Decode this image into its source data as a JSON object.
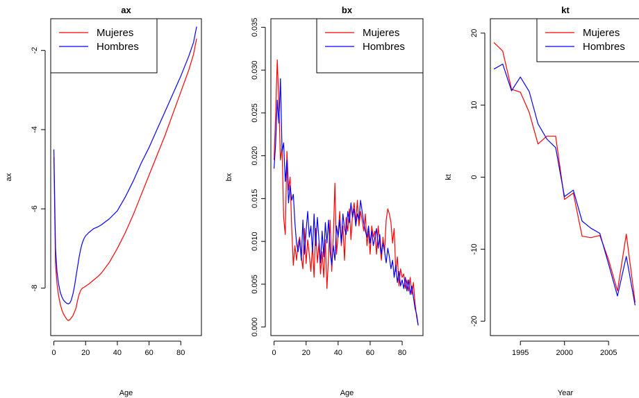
{
  "chart_data": [
    {
      "type": "line",
      "title": "ax",
      "xlabel": "Age",
      "ylabel": "ax",
      "xlim": [
        -2,
        93
      ],
      "ylim": [
        -9.2,
        -1.2
      ],
      "x_ticks": [
        0,
        20,
        40,
        60,
        80
      ],
      "y_ticks": [
        -8,
        -6,
        -4,
        -2
      ],
      "grid": false,
      "legend_position": "top-left",
      "series": [
        {
          "name": "Mujeres",
          "color": "#ff0000",
          "x": [
            0,
            1,
            2,
            3,
            4,
            5,
            6,
            7,
            8,
            9,
            10,
            11,
            12,
            13,
            14,
            15,
            16,
            17,
            18,
            19,
            20,
            22,
            25,
            28,
            30,
            35,
            40,
            45,
            50,
            55,
            60,
            65,
            70,
            75,
            80,
            85,
            88,
            90
          ],
          "y": [
            -4.7,
            -7.4,
            -7.9,
            -8.2,
            -8.4,
            -8.55,
            -8.65,
            -8.72,
            -8.78,
            -8.82,
            -8.8,
            -8.75,
            -8.7,
            -8.6,
            -8.5,
            -8.3,
            -8.15,
            -8.05,
            -8.0,
            -7.98,
            -7.95,
            -7.9,
            -7.8,
            -7.7,
            -7.62,
            -7.35,
            -7.0,
            -6.6,
            -6.15,
            -5.65,
            -5.15,
            -4.65,
            -4.15,
            -3.6,
            -3.05,
            -2.5,
            -2.1,
            -1.7
          ]
        },
        {
          "name": "Hombres",
          "color": "#0000ff",
          "x": [
            0,
            1,
            2,
            3,
            4,
            5,
            6,
            7,
            8,
            9,
            10,
            11,
            12,
            13,
            14,
            15,
            16,
            17,
            18,
            19,
            20,
            22,
            25,
            28,
            30,
            35,
            40,
            45,
            50,
            55,
            60,
            65,
            70,
            75,
            80,
            85,
            88,
            90
          ],
          "y": [
            -4.5,
            -7.0,
            -7.6,
            -7.9,
            -8.1,
            -8.22,
            -8.3,
            -8.35,
            -8.38,
            -8.4,
            -8.38,
            -8.3,
            -8.15,
            -7.95,
            -7.7,
            -7.45,
            -7.2,
            -7.0,
            -6.85,
            -6.75,
            -6.68,
            -6.6,
            -6.5,
            -6.45,
            -6.4,
            -6.25,
            -6.05,
            -5.7,
            -5.3,
            -4.85,
            -4.45,
            -4.0,
            -3.55,
            -3.1,
            -2.65,
            -2.15,
            -1.8,
            -1.4
          ]
        }
      ]
    },
    {
      "type": "line",
      "title": "bx",
      "xlabel": "Age",
      "ylabel": "bx",
      "xlim": [
        -2,
        93
      ],
      "ylim": [
        -0.001,
        0.036
      ],
      "x_ticks": [
        0,
        20,
        40,
        60,
        80
      ],
      "y_ticks": [
        0.0,
        0.005,
        0.01,
        0.015,
        0.02,
        0.025,
        0.03,
        0.035
      ],
      "y_tick_labels": [
        "0.000",
        "0.005",
        "0.010",
        "0.015",
        "0.020",
        "0.025",
        "0.030",
        "0.035"
      ],
      "grid": false,
      "legend_position": "top-right",
      "series": [
        {
          "name": "Mujeres",
          "color": "#ff0000",
          "x": [
            0,
            1,
            2,
            3,
            4,
            5,
            6,
            7,
            8,
            9,
            10,
            11,
            12,
            13,
            14,
            15,
            16,
            17,
            18,
            19,
            20,
            21,
            22,
            23,
            24,
            25,
            26,
            27,
            28,
            29,
            30,
            31,
            32,
            33,
            34,
            35,
            36,
            37,
            38,
            39,
            40,
            41,
            42,
            43,
            44,
            45,
            46,
            47,
            48,
            49,
            50,
            51,
            52,
            53,
            54,
            55,
            56,
            57,
            58,
            59,
            60,
            61,
            62,
            63,
            64,
            65,
            66,
            67,
            68,
            69,
            70,
            71,
            72,
            73,
            74,
            75,
            76,
            77,
            78,
            79,
            80,
            81,
            82,
            83,
            84,
            85,
            86,
            87,
            88,
            89,
            90
          ],
          "y": [
            0.0195,
            0.025,
            0.0312,
            0.026,
            0.0195,
            0.021,
            0.0128,
            0.0108,
            0.0205,
            0.016,
            0.0175,
            0.0115,
            0.0072,
            0.0095,
            0.0078,
            0.0098,
            0.0105,
            0.0082,
            0.0068,
            0.0115,
            0.0074,
            0.0102,
            0.0085,
            0.0065,
            0.0095,
            0.0058,
            0.0115,
            0.0075,
            0.0098,
            0.0062,
            0.0088,
            0.0058,
            0.0102,
            0.0045,
            0.0082,
            0.0125,
            0.0065,
            0.0105,
            0.0168,
            0.0085,
            0.0108,
            0.0135,
            0.0095,
            0.0118,
            0.0078,
            0.0128,
            0.0112,
            0.0138,
            0.0102,
            0.0132,
            0.0145,
            0.0122,
            0.0148,
            0.0118,
            0.0135,
            0.0125,
            0.0112,
            0.0132,
            0.0095,
            0.0112,
            0.0085,
            0.0118,
            0.0105,
            0.0112,
            0.0085,
            0.0118,
            0.0098,
            0.0078,
            0.0105,
            0.0088,
            0.0125,
            0.0138,
            0.0132,
            0.0122,
            0.0098,
            0.0115,
            0.0065,
            0.0082,
            0.0048,
            0.0068,
            0.0058,
            0.0062,
            0.0045,
            0.0055,
            0.0042,
            0.0058,
            0.0038,
            0.0052,
            0.0028,
            0.0012,
            0.0002
          ]
        },
        {
          "name": "Hombres",
          "color": "#0000ff",
          "x": [
            0,
            1,
            2,
            3,
            4,
            5,
            6,
            7,
            8,
            9,
            10,
            11,
            12,
            13,
            14,
            15,
            16,
            17,
            18,
            19,
            20,
            21,
            22,
            23,
            24,
            25,
            26,
            27,
            28,
            29,
            30,
            31,
            32,
            33,
            34,
            35,
            36,
            37,
            38,
            39,
            40,
            41,
            42,
            43,
            44,
            45,
            46,
            47,
            48,
            49,
            50,
            51,
            52,
            53,
            54,
            55,
            56,
            57,
            58,
            59,
            60,
            61,
            62,
            63,
            64,
            65,
            66,
            67,
            68,
            69,
            70,
            71,
            72,
            73,
            74,
            75,
            76,
            77,
            78,
            79,
            80,
            81,
            82,
            83,
            84,
            85,
            86,
            87,
            88,
            89,
            90
          ],
          "y": [
            0.0185,
            0.0215,
            0.0265,
            0.0238,
            0.029,
            0.0205,
            0.0215,
            0.017,
            0.0195,
            0.0145,
            0.0165,
            0.0148,
            0.0155,
            0.0122,
            0.0098,
            0.0088,
            0.0102,
            0.0078,
            0.0125,
            0.0085,
            0.0112,
            0.0135,
            0.0105,
            0.0118,
            0.0088,
            0.0132,
            0.0095,
            0.0128,
            0.0102,
            0.0075,
            0.0112,
            0.0082,
            0.0122,
            0.0098,
            0.0125,
            0.0088,
            0.0072,
            0.0095,
            0.0078,
            0.0118,
            0.0105,
            0.0125,
            0.0098,
            0.0132,
            0.0115,
            0.0108,
            0.0135,
            0.0122,
            0.0145,
            0.0128,
            0.0138,
            0.0118,
            0.0132,
            0.0125,
            0.0148,
            0.0135,
            0.0122,
            0.0112,
            0.0105,
            0.0118,
            0.0098,
            0.0112,
            0.0095,
            0.0105,
            0.0115,
            0.0092,
            0.0108,
            0.0085,
            0.0098,
            0.0088,
            0.0075,
            0.0092,
            0.0082,
            0.0068,
            0.0078,
            0.0058,
            0.0072,
            0.0052,
            0.0065,
            0.0048,
            0.0055,
            0.0045,
            0.0058,
            0.0042,
            0.0055,
            0.0038,
            0.0048,
            0.0035,
            0.0022,
            0.0015,
            0.0002
          ]
        }
      ]
    },
    {
      "type": "line",
      "title": "kt",
      "xlabel": "Year",
      "ylabel": "kt",
      "xlim": [
        1991.6,
        2008.6
      ],
      "ylim": [
        -22,
        22
      ],
      "x_ticks": [
        1995,
        2000,
        2005
      ],
      "y_ticks": [
        -20,
        -10,
        0,
        10,
        20
      ],
      "grid": false,
      "legend_position": "top-right",
      "series": [
        {
          "name": "Mujeres",
          "color": "#ff0000",
          "x": [
            1992,
            1993,
            1994,
            1995,
            1996,
            1997,
            1998,
            1999,
            2000,
            2001,
            2002,
            2003,
            2004,
            2005,
            2006,
            2007,
            2008
          ],
          "y": [
            18.7,
            17.5,
            12.2,
            11.8,
            9.0,
            4.6,
            5.7,
            5.7,
            -3.1,
            -2.2,
            -8.2,
            -8.4,
            -8.1,
            -11.5,
            -15.8,
            -7.9,
            -17.4
          ]
        },
        {
          "name": "Hombres",
          "color": "#0000ff",
          "x": [
            1992,
            1993,
            1994,
            1995,
            1996,
            1997,
            1998,
            1999,
            2000,
            2001,
            2002,
            2003,
            2004,
            2005,
            2006,
            2007,
            2008
          ],
          "y": [
            15.0,
            15.7,
            12.0,
            13.9,
            11.9,
            7.4,
            5.3,
            4.1,
            -2.7,
            -1.8,
            -6.1,
            -7.1,
            -7.8,
            -12.1,
            -16.5,
            -11.0,
            -17.8
          ]
        }
      ]
    }
  ]
}
